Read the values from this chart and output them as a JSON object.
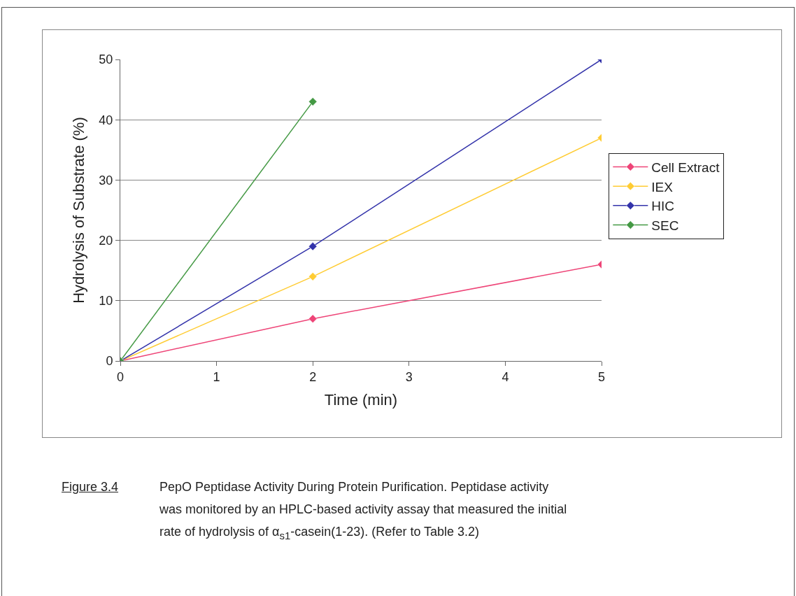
{
  "chart_data": {
    "type": "line",
    "xlabel": "Time (min)",
    "ylabel": "Hydrolysis of Substrate (%)",
    "x": [
      0,
      2,
      5
    ],
    "series": [
      {
        "name": "Cell Extract",
        "color": "#ee4477",
        "values": [
          0,
          7,
          16
        ]
      },
      {
        "name": "IEX",
        "color": "#ffcc33",
        "values": [
          0,
          14,
          37
        ]
      },
      {
        "name": "HIC",
        "color": "#3333aa",
        "values": [
          0,
          19,
          50
        ]
      },
      {
        "name": "SEC",
        "color": "#449944",
        "values": [
          0,
          43,
          null
        ]
      }
    ],
    "xlim": [
      0,
      5
    ],
    "xticks": [
      0,
      1,
      2,
      3,
      4,
      5
    ],
    "ylim": [
      0,
      50
    ],
    "yticks": [
      0,
      10,
      20,
      30,
      40,
      50
    ],
    "grid": "y",
    "legend": "right",
    "marker": "diamond",
    "line_style": "solid",
    "annotations": [
      "Figure 3.4",
      "PepO Peptidase Activity During Protein Purification.  Peptidase activity was monitored by an HPLC-based activity assay that measured the initial rate of hydrolysis of α$_{s1}$-casein(1-23). (Refer to  Table 3.2)"
    ]
  }
}
